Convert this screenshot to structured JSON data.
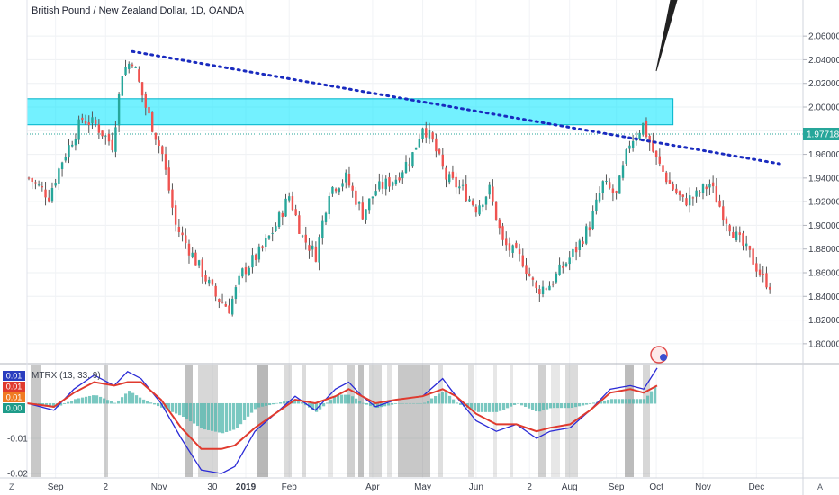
{
  "chart_data": [
    {
      "type": "candlestick",
      "title": "British Pound / New Zealand Dollar, 1D, OANDA",
      "ylim": [
        1.79,
        2.07
      ],
      "y_ticks": [
        "2.06000",
        "2.04000",
        "2.02000",
        "2.00000",
        "1.98000",
        "1.96000",
        "1.94000",
        "1.92000",
        "1.90000",
        "1.88000",
        "1.86000",
        "1.84000",
        "1.82000",
        "1.80000"
      ],
      "x_ticks": [
        "Sep",
        "2",
        "Nov",
        "30",
        "2019",
        "Feb",
        "Apr",
        "May",
        "Jun",
        "2",
        "Aug",
        "Sep",
        "Oct",
        "Nov",
        "Dec"
      ],
      "last_price": "1.97718",
      "close_path": [
        {
          "x": 0,
          "y": 1.94
        },
        {
          "x": 6,
          "y": 1.925
        },
        {
          "x": 10,
          "y": 1.955
        },
        {
          "x": 16,
          "y": 1.99
        },
        {
          "x": 20,
          "y": 1.985
        },
        {
          "x": 25,
          "y": 1.968
        },
        {
          "x": 28,
          "y": 2.03
        },
        {
          "x": 31,
          "y": 2.04
        },
        {
          "x": 35,
          "y": 2.0
        },
        {
          "x": 40,
          "y": 1.96
        },
        {
          "x": 44,
          "y": 1.9
        },
        {
          "x": 50,
          "y": 1.87
        },
        {
          "x": 56,
          "y": 1.84
        },
        {
          "x": 60,
          "y": 1.83
        },
        {
          "x": 64,
          "y": 1.86
        },
        {
          "x": 70,
          "y": 1.88
        },
        {
          "x": 74,
          "y": 1.9
        },
        {
          "x": 78,
          "y": 1.925
        },
        {
          "x": 82,
          "y": 1.89
        },
        {
          "x": 86,
          "y": 1.875
        },
        {
          "x": 90,
          "y": 1.93
        },
        {
          "x": 95,
          "y": 1.94
        },
        {
          "x": 100,
          "y": 1.91
        },
        {
          "x": 104,
          "y": 1.93
        },
        {
          "x": 110,
          "y": 1.94
        },
        {
          "x": 115,
          "y": 1.96
        },
        {
          "x": 118,
          "y": 1.985
        },
        {
          "x": 121,
          "y": 1.97
        },
        {
          "x": 125,
          "y": 1.94
        },
        {
          "x": 130,
          "y": 1.93
        },
        {
          "x": 134,
          "y": 1.915
        },
        {
          "x": 138,
          "y": 1.93
        },
        {
          "x": 142,
          "y": 1.885
        },
        {
          "x": 148,
          "y": 1.87
        },
        {
          "x": 152,
          "y": 1.845
        },
        {
          "x": 156,
          "y": 1.85
        },
        {
          "x": 160,
          "y": 1.865
        },
        {
          "x": 164,
          "y": 1.88
        },
        {
          "x": 168,
          "y": 1.9
        },
        {
          "x": 172,
          "y": 1.935
        },
        {
          "x": 176,
          "y": 1.925
        },
        {
          "x": 180,
          "y": 1.97
        },
        {
          "x": 184,
          "y": 1.985
        },
        {
          "x": 188,
          "y": 1.955
        },
        {
          "x": 192,
          "y": 1.935
        },
        {
          "x": 196,
          "y": 1.92
        },
        {
          "x": 200,
          "y": 1.925
        },
        {
          "x": 204,
          "y": 1.935
        },
        {
          "x": 208,
          "y": 1.91
        },
        {
          "x": 212,
          "y": 1.89
        },
        {
          "x": 216,
          "y": 1.875
        },
        {
          "x": 220,
          "y": 1.855
        },
        {
          "x": 222,
          "y": 1.85
        }
      ],
      "resistance_zone": [
        1.985,
        2.007
      ],
      "trendline": [
        [
          31,
          2.047
        ],
        [
          225,
          1.952
        ]
      ]
    },
    {
      "type": "line",
      "title": "MTRX (13, 33, 9)",
      "ylim": [
        -0.021,
        0.011
      ],
      "y_ticks": [
        "-0.01",
        "-0.02"
      ],
      "value_labels": [
        "0.01",
        "0.01",
        "0.01",
        "0.00"
      ],
      "label_colors": [
        "#2a3dbf",
        "#e03a2e",
        "#f07a22",
        "#1f9c8a"
      ],
      "series": [
        {
          "color": "#2b2bd6",
          "points": [
            [
              0,
              0.0
            ],
            [
              8,
              -0.002
            ],
            [
              14,
              0.004
            ],
            [
              20,
              0.008
            ],
            [
              26,
              0.005
            ],
            [
              30,
              0.009
            ],
            [
              34,
              0.007
            ],
            [
              40,
              0.0
            ],
            [
              46,
              -0.01
            ],
            [
              52,
              -0.019
            ],
            [
              58,
              -0.02
            ],
            [
              62,
              -0.018
            ],
            [
              68,
              -0.008
            ],
            [
              74,
              -0.003
            ],
            [
              80,
              0.002
            ],
            [
              86,
              -0.002
            ],
            [
              92,
              0.004
            ],
            [
              96,
              0.006
            ],
            [
              100,
              0.002
            ],
            [
              104,
              -0.001
            ],
            [
              110,
              0.001
            ],
            [
              118,
              0.002
            ],
            [
              124,
              0.007
            ],
            [
              128,
              0.002
            ],
            [
              134,
              -0.005
            ],
            [
              140,
              -0.008
            ],
            [
              146,
              -0.006
            ],
            [
              152,
              -0.01
            ],
            [
              156,
              -0.008
            ],
            [
              162,
              -0.007
            ],
            [
              168,
              -0.002
            ],
            [
              174,
              0.004
            ],
            [
              180,
              0.005
            ],
            [
              184,
              0.004
            ],
            [
              188,
              0.01
            ]
          ]
        },
        {
          "color": "#e03a2e",
          "points": [
            [
              0,
              0.0
            ],
            [
              8,
              -0.001
            ],
            [
              14,
              0.003
            ],
            [
              20,
              0.006
            ],
            [
              26,
              0.005
            ],
            [
              30,
              0.006
            ],
            [
              34,
              0.006
            ],
            [
              40,
              0.001
            ],
            [
              46,
              -0.007
            ],
            [
              52,
              -0.013
            ],
            [
              58,
              -0.013
            ],
            [
              62,
              -0.012
            ],
            [
              68,
              -0.007
            ],
            [
              74,
              -0.003
            ],
            [
              80,
              0.001
            ],
            [
              86,
              0.0
            ],
            [
              92,
              0.002
            ],
            [
              96,
              0.004
            ],
            [
              100,
              0.002
            ],
            [
              104,
              0.0
            ],
            [
              110,
              0.001
            ],
            [
              118,
              0.002
            ],
            [
              124,
              0.004
            ],
            [
              128,
              0.002
            ],
            [
              134,
              -0.003
            ],
            [
              140,
              -0.006
            ],
            [
              146,
              -0.006
            ],
            [
              152,
              -0.008
            ],
            [
              156,
              -0.007
            ],
            [
              162,
              -0.006
            ],
            [
              168,
              -0.002
            ],
            [
              174,
              0.003
            ],
            [
              180,
              0.004
            ],
            [
              184,
              0.003
            ],
            [
              188,
              0.005
            ]
          ]
        }
      ]
    }
  ],
  "corner": {
    "left": "Z",
    "right": "A"
  },
  "icons": [
    "attention-sign-icon"
  ]
}
